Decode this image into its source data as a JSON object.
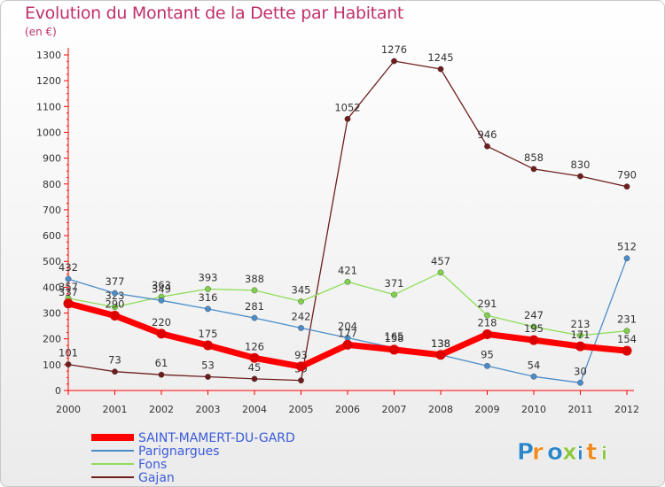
{
  "header": {
    "title": "Evolution du Montant de la Dette par Habitant",
    "unit": "(en €)"
  },
  "brand": {
    "text": "Proxiti"
  },
  "chart_data": {
    "type": "line",
    "title": "Evolution du Montant de la Dette par Habitant",
    "ylabel": "(en €)",
    "xlabel": "",
    "x": [
      "2000",
      "2001",
      "2002",
      "2003",
      "2004",
      "2005",
      "2006",
      "2007",
      "2008",
      "2009",
      "2010",
      "2011",
      "2012"
    ],
    "ylim": [
      0,
      1300
    ],
    "yticks": [
      0,
      100,
      200,
      300,
      400,
      500,
      600,
      700,
      800,
      900,
      1000,
      1100,
      1200,
      1300
    ],
    "grid": false,
    "legend_position": "bottom-left",
    "series": [
      {
        "name": "SAINT-MAMERT-DU-GARD",
        "color": "#ff0000",
        "values": [
          337,
          290,
          220,
          175,
          126,
          93,
          177,
          158,
          138,
          218,
          195,
          171,
          154
        ]
      },
      {
        "name": "Parignargues",
        "color": "#4a8cc9",
        "values": [
          432,
          377,
          349,
          316,
          281,
          242,
          204,
          165,
          138,
          95,
          54,
          30,
          512
        ]
      },
      {
        "name": "Fons",
        "color": "#8fdd5a",
        "values": [
          357,
          323,
          363,
          393,
          388,
          345,
          421,
          371,
          457,
          291,
          247,
          213,
          231
        ]
      },
      {
        "name": "Gajan",
        "color": "#6e1d1d",
        "values": [
          101,
          73,
          61,
          53,
          45,
          39,
          1052,
          1276,
          1245,
          946,
          858,
          830,
          790
        ]
      }
    ]
  }
}
